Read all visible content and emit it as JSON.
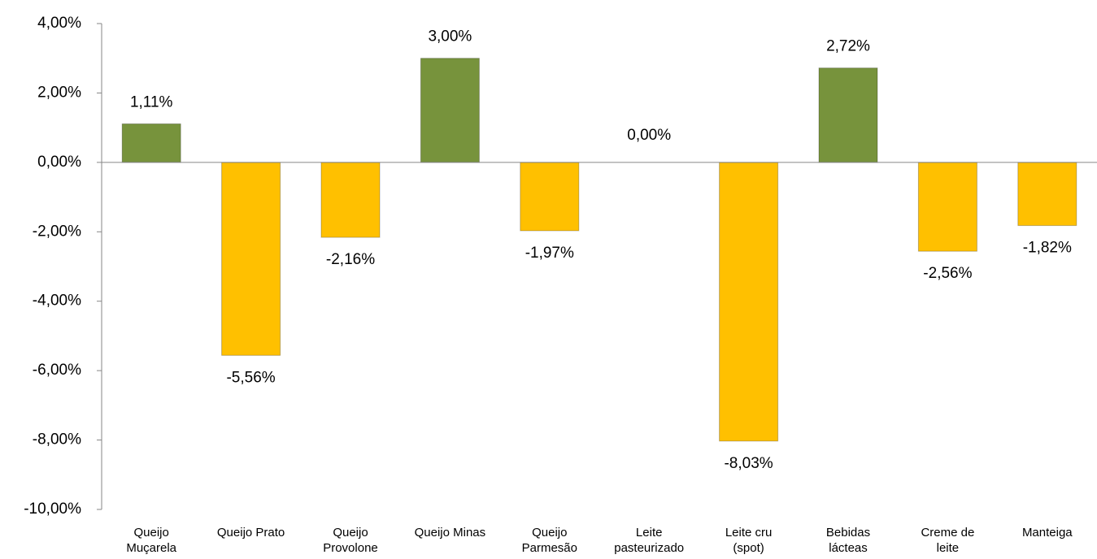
{
  "chart_data": {
    "type": "bar",
    "categories": [
      "Queijo Muçarela",
      "Queijo Prato",
      "Queijo Provolone",
      "Queijo Minas",
      "Queijo Parmesão",
      "Leite pasteurizado",
      "Leite cru (spot)",
      "Bebidas lácteas",
      "Creme de leite",
      "Manteiga"
    ],
    "values": [
      1.11,
      -5.56,
      -2.16,
      3.0,
      -1.97,
      0.0,
      -8.03,
      2.72,
      -2.56,
      -1.82
    ],
    "value_labels": [
      "1,11%",
      "-5,56%",
      "-2,16%",
      "3,00%",
      "-1,97%",
      "0,00%",
      "-8,03%",
      "2,72%",
      "-2,56%",
      "-1,82%"
    ],
    "colors": [
      "#77933c",
      "#ffc000",
      "#ffc000",
      "#77933c",
      "#ffc000",
      "#ffc000",
      "#ffc000",
      "#77933c",
      "#ffc000",
      "#ffc000"
    ],
    "ylim": [
      -10,
      4
    ],
    "yticks": [
      {
        "value": -10,
        "label": "-10,00%"
      },
      {
        "value": -8,
        "label": "-8,00%"
      },
      {
        "value": -6,
        "label": "-6,00%"
      },
      {
        "value": -4,
        "label": "-4,00%"
      },
      {
        "value": -2,
        "label": "-2,00%"
      },
      {
        "value": 0,
        "label": "0,00%"
      },
      {
        "value": 2,
        "label": "2,00%"
      },
      {
        "value": 4,
        "label": "4,00%"
      }
    ],
    "grid": false
  }
}
